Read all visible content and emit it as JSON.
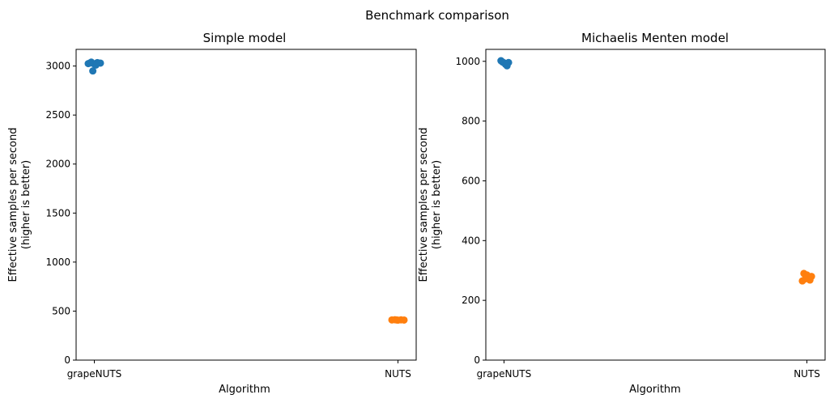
{
  "figure": {
    "suptitle": "Benchmark comparison"
  },
  "chart_data": [
    {
      "type": "scatter",
      "title": "Simple model",
      "xlabel": "Algorithm",
      "ylabel": [
        "Effective samples per second",
        "(higher is better)"
      ],
      "categories": [
        "grapeNUTS",
        "NUTS"
      ],
      "ylim": [
        0,
        3170
      ],
      "yticks": [
        0,
        500,
        1000,
        1500,
        2000,
        2500,
        3000
      ],
      "grid": false,
      "series": [
        {
          "category": "grapeNUTS",
          "color": "#1f77b4",
          "points": [
            {
              "x": -0.02,
              "y": 3025
            },
            {
              "x": -0.01,
              "y": 3040
            },
            {
              "x": 0.0,
              "y": 3020
            },
            {
              "x": 0.01,
              "y": 3035
            },
            {
              "x": 0.02,
              "y": 3030
            },
            {
              "x": 0.005,
              "y": 3010
            },
            {
              "x": -0.015,
              "y": 3030
            },
            {
              "x": -0.005,
              "y": 2950
            }
          ]
        },
        {
          "category": "NUTS",
          "color": "#ff7f0e",
          "points": [
            {
              "x": 0.98,
              "y": 410
            },
            {
              "x": 0.99,
              "y": 412
            },
            {
              "x": 1.0,
              "y": 408
            },
            {
              "x": 1.01,
              "y": 411
            },
            {
              "x": 1.02,
              "y": 409
            },
            {
              "x": 0.995,
              "y": 410
            }
          ]
        }
      ]
    },
    {
      "type": "scatter",
      "title": "Michaelis Menten model",
      "xlabel": "Algorithm",
      "ylabel": [
        "Effective samples per second",
        "(higher is better)"
      ],
      "categories": [
        "grapeNUTS",
        "NUTS"
      ],
      "ylim": [
        0,
        1040
      ],
      "yticks": [
        0,
        200,
        400,
        600,
        800,
        1000
      ],
      "grid": false,
      "series": [
        {
          "category": "grapeNUTS",
          "color": "#1f77b4",
          "points": [
            {
              "x": -0.01,
              "y": 1002
            },
            {
              "x": 0.0,
              "y": 995
            },
            {
              "x": 0.005,
              "y": 990
            },
            {
              "x": 0.01,
              "y": 985
            },
            {
              "x": 0.015,
              "y": 996
            },
            {
              "x": -0.005,
              "y": 998
            },
            {
              "x": 0.008,
              "y": 988
            }
          ]
        },
        {
          "category": "NUTS",
          "color": "#ff7f0e",
          "points": [
            {
              "x": 0.99,
              "y": 290
            },
            {
              "x": 1.0,
              "y": 285
            },
            {
              "x": 1.005,
              "y": 275
            },
            {
              "x": 1.01,
              "y": 268
            },
            {
              "x": 0.995,
              "y": 272
            },
            {
              "x": 1.015,
              "y": 280
            },
            {
              "x": 0.985,
              "y": 265
            }
          ]
        }
      ]
    }
  ]
}
